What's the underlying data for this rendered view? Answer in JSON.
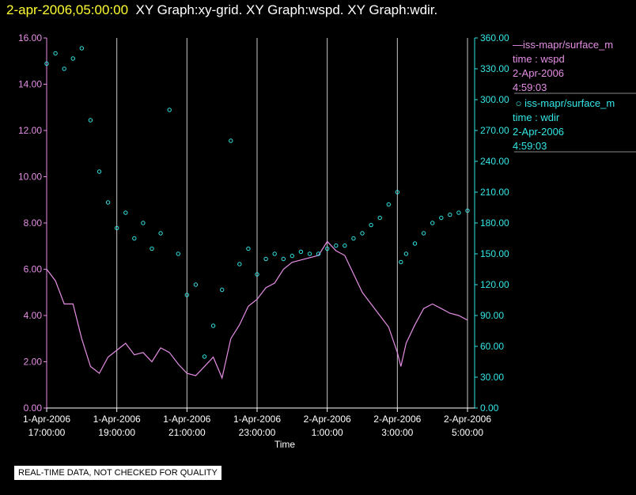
{
  "header": {
    "timestamp": "2-apr-2006,05:00:00",
    "titles": "XY Graph:xy-grid.  XY Graph:wspd.  XY Graph:wdir."
  },
  "colors": {
    "background": "#000000",
    "wspd": "#e58ee5",
    "wdir": "#33e6e6",
    "grid": "#c8c8c8",
    "axis": "#ffffff",
    "timestamp": "#ffff33"
  },
  "legend": {
    "wspd": {
      "name": "iss-mapr/surface_m",
      "var": "time : wspd",
      "date": "2-Apr-2006",
      "time": "4:59:03"
    },
    "wdir": {
      "name": "iss-mapr/surface_m",
      "var": "time : wdir",
      "date": "2-Apr-2006",
      "time": "4:59:03"
    }
  },
  "disclaimer": "REAL-TIME DATA, NOT CHECKED FOR QUALITY",
  "chart_data": {
    "type": "line",
    "xlabel": "Time",
    "x_ticks": [
      {
        "hour": 17,
        "date": "1-Apr-2006",
        "time": "17:00:00"
      },
      {
        "hour": 19,
        "date": "1-Apr-2006",
        "time": "19:00:00"
      },
      {
        "hour": 21,
        "date": "1-Apr-2006",
        "time": "21:00:00"
      },
      {
        "hour": 23,
        "date": "1-Apr-2006",
        "time": "23:00:00"
      },
      {
        "hour": 25,
        "date": "2-Apr-2006",
        "time": "1:00:00"
      },
      {
        "hour": 27,
        "date": "2-Apr-2006",
        "time": "3:00:00"
      },
      {
        "hour": 29,
        "date": "2-Apr-2006",
        "time": "5:00:00"
      }
    ],
    "xlim": [
      17,
      29
    ],
    "grid": "vertical lines at time ticks",
    "left_axis": {
      "series": "wspd",
      "ylim": [
        0,
        16
      ],
      "ticks": [
        "0.00",
        "2.00",
        "4.00",
        "6.00",
        "8.00",
        "10.00",
        "12.00",
        "14.00",
        "16.00"
      ]
    },
    "right_axis": {
      "series": "wdir",
      "ylim": [
        0,
        360
      ],
      "ticks": [
        "0.00",
        "30.00",
        "60.00",
        "90.00",
        "120.00",
        "150.00",
        "180.00",
        "210.00",
        "240.00",
        "270.00",
        "300.00",
        "330.00",
        "360.00"
      ]
    },
    "series": [
      {
        "name": "iss-mapr/surface_m",
        "variable": "wspd",
        "style": "line",
        "x": [
          17.0,
          17.25,
          17.5,
          17.75,
          18.0,
          18.25,
          18.5,
          18.75,
          19.0,
          19.25,
          19.5,
          19.75,
          20.0,
          20.25,
          20.5,
          20.75,
          21.0,
          21.25,
          21.5,
          21.75,
          22.0,
          22.25,
          22.5,
          22.75,
          23.0,
          23.25,
          23.5,
          23.75,
          24.0,
          24.25,
          24.5,
          24.75,
          25.0,
          25.25,
          25.5,
          25.75,
          26.0,
          26.25,
          26.5,
          26.75,
          27.0,
          27.1,
          27.25,
          27.5,
          27.75,
          28.0,
          28.25,
          28.5,
          28.75,
          29.0
        ],
        "y": [
          6.0,
          5.5,
          4.5,
          4.5,
          3.0,
          1.8,
          1.5,
          2.2,
          2.5,
          2.8,
          2.3,
          2.4,
          2.0,
          2.6,
          2.4,
          1.9,
          1.5,
          1.4,
          1.8,
          2.2,
          1.3,
          3.0,
          3.6,
          4.4,
          4.7,
          5.2,
          5.4,
          6.0,
          6.3,
          6.4,
          6.5,
          6.6,
          7.2,
          6.8,
          6.6,
          5.8,
          5.0,
          4.5,
          4.0,
          3.5,
          2.4,
          1.8,
          2.8,
          3.6,
          4.3,
          4.5,
          4.3,
          4.1,
          4.0,
          3.8
        ]
      },
      {
        "name": "iss-mapr/surface_m",
        "variable": "wdir",
        "style": "points",
        "x": [
          17.0,
          17.25,
          17.5,
          17.75,
          18.0,
          18.25,
          18.5,
          18.75,
          19.0,
          19.25,
          19.5,
          19.75,
          20.0,
          20.25,
          20.5,
          20.75,
          21.0,
          21.25,
          21.5,
          21.75,
          22.0,
          22.25,
          22.5,
          22.75,
          23.0,
          23.25,
          23.5,
          23.75,
          24.0,
          24.25,
          24.5,
          24.75,
          25.0,
          25.25,
          25.5,
          25.75,
          26.0,
          26.25,
          26.5,
          26.75,
          27.0,
          27.1,
          27.25,
          27.5,
          27.75,
          28.0,
          28.25,
          28.5,
          28.75,
          29.0
        ],
        "y": [
          335,
          345,
          330,
          340,
          350,
          280,
          230,
          200,
          175,
          190,
          165,
          180,
          155,
          170,
          290,
          150,
          110,
          120,
          50,
          80,
          115,
          260,
          140,
          155,
          130,
          145,
          150,
          145,
          148,
          152,
          150,
          150,
          155,
          158,
          158,
          165,
          170,
          178,
          185,
          198,
          210,
          142,
          150,
          160,
          170,
          180,
          185,
          188,
          190,
          192
        ]
      }
    ]
  }
}
